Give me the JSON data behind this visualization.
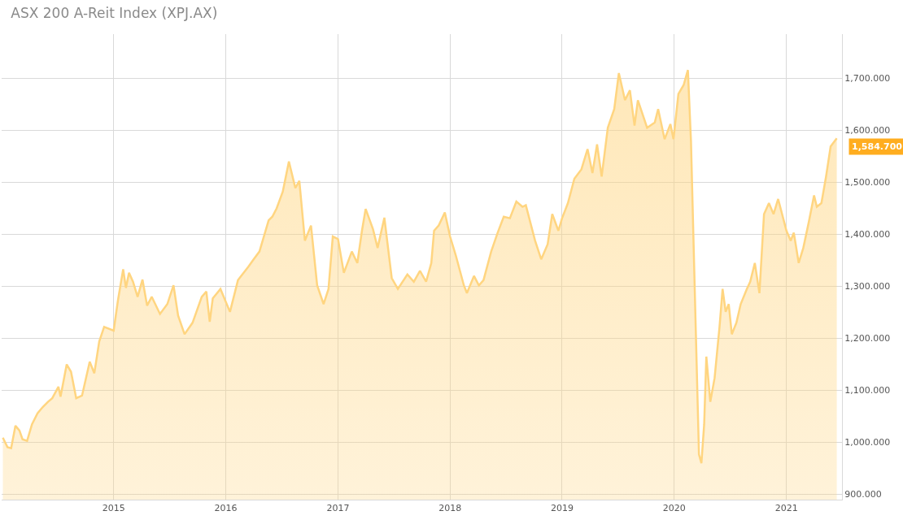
{
  "chart_data": {
    "type": "area",
    "title": "ASX 200 A-Reit Index (XPJ.AX)",
    "x": [
      "2014-01-05",
      "2014-01-20",
      "2014-02-01",
      "2014-02-15",
      "2014-02-28",
      "2014-03-10",
      "2014-03-25",
      "2014-04-10",
      "2014-04-28",
      "2014-05-15",
      "2014-06-01",
      "2014-06-15",
      "2014-07-05",
      "2014-07-12",
      "2014-08-01",
      "2014-08-15",
      "2014-09-01",
      "2014-09-20",
      "2014-10-15",
      "2014-10-30",
      "2014-11-15",
      "2014-12-01",
      "2015-01-01",
      "2015-01-15",
      "2015-02-01",
      "2015-02-10",
      "2015-02-20",
      "2015-03-05",
      "2015-03-20",
      "2015-04-05",
      "2015-04-20",
      "2015-05-05",
      "2015-06-01",
      "2015-06-25",
      "2015-07-15",
      "2015-07-30",
      "2015-08-20",
      "2015-09-15",
      "2015-10-15",
      "2015-10-30",
      "2015-11-10",
      "2015-11-20",
      "2015-12-15",
      "2016-01-15",
      "2016-02-10",
      "2016-03-15",
      "2016-04-01",
      "2016-04-20",
      "2016-05-20",
      "2016-06-01",
      "2016-06-15",
      "2016-07-05",
      "2016-07-25",
      "2016-08-15",
      "2016-08-28",
      "2016-09-15",
      "2016-10-05",
      "2016-10-25",
      "2016-11-15",
      "2016-12-01",
      "2016-12-15",
      "2017-01-01",
      "2017-01-20",
      "2017-02-15",
      "2017-03-05",
      "2017-03-20",
      "2017-04-01",
      "2017-04-25",
      "2017-05-10",
      "2017-06-01",
      "2017-06-25",
      "2017-07-15",
      "2017-08-15",
      "2017-09-05",
      "2017-09-25",
      "2017-10-15",
      "2017-11-01",
      "2017-11-10",
      "2017-11-25",
      "2017-12-15",
      "2018-01-01",
      "2018-01-20",
      "2018-02-15",
      "2018-02-25",
      "2018-03-20",
      "2018-04-05",
      "2018-04-20",
      "2018-05-15",
      "2018-06-05",
      "2018-06-25",
      "2018-07-15",
      "2018-08-05",
      "2018-08-25",
      "2018-09-05",
      "2018-10-05",
      "2018-10-25",
      "2018-11-15",
      "2018-11-30",
      "2018-12-20",
      "2019-01-01",
      "2019-01-20",
      "2019-02-10",
      "2019-03-05",
      "2019-03-25",
      "2019-04-10",
      "2019-04-25",
      "2019-05-10",
      "2019-05-30",
      "2019-06-20",
      "2019-07-05",
      "2019-07-25",
      "2019-08-10",
      "2019-08-25",
      "2019-09-05",
      "2019-10-05",
      "2019-10-30",
      "2019-11-10",
      "2019-12-01",
      "2019-12-20",
      "2019-12-30",
      "2020-01-15",
      "2020-02-01",
      "2020-02-15",
      "2020-02-25",
      "2020-03-12",
      "2020-03-22",
      "2020-03-30",
      "2020-04-08",
      "2020-04-15",
      "2020-04-28",
      "2020-05-12",
      "2020-05-28",
      "2020-06-07",
      "2020-06-17",
      "2020-06-27",
      "2020-07-07",
      "2020-07-22",
      "2020-08-05",
      "2020-08-25",
      "2020-09-05",
      "2020-09-20",
      "2020-10-05",
      "2020-10-20",
      "2020-11-05",
      "2020-11-20",
      "2020-12-05",
      "2021-01-01",
      "2021-01-15",
      "2021-01-25",
      "2021-02-10",
      "2021-02-25",
      "2021-03-15",
      "2021-04-01",
      "2021-04-10",
      "2021-04-25",
      "2021-05-10",
      "2021-05-25",
      "2021-06-14"
    ],
    "values": [
      1009,
      991,
      989,
      1032,
      1023,
      1006,
      1003,
      1035,
      1056,
      1068,
      1078,
      1085,
      1107,
      1088,
      1150,
      1136,
      1085,
      1090,
      1155,
      1133,
      1194,
      1222,
      1215,
      1273,
      1333,
      1297,
      1326,
      1309,
      1280,
      1313,
      1263,
      1280,
      1247,
      1266,
      1302,
      1244,
      1208,
      1230,
      1280,
      1290,
      1232,
      1277,
      1295,
      1251,
      1312,
      1338,
      1352,
      1367,
      1427,
      1434,
      1450,
      1482,
      1540,
      1489,
      1503,
      1388,
      1417,
      1302,
      1266,
      1295,
      1396,
      1391,
      1326,
      1367,
      1345,
      1407,
      1449,
      1410,
      1374,
      1432,
      1316,
      1295,
      1323,
      1309,
      1330,
      1309,
      1345,
      1407,
      1417,
      1442,
      1396,
      1359,
      1302,
      1287,
      1320,
      1302,
      1312,
      1367,
      1403,
      1434,
      1431,
      1463,
      1453,
      1456,
      1388,
      1352,
      1381,
      1439,
      1407,
      1431,
      1460,
      1507,
      1525,
      1564,
      1518,
      1573,
      1511,
      1605,
      1641,
      1710,
      1658,
      1677,
      1609,
      1658,
      1605,
      1615,
      1641,
      1583,
      1612,
      1583,
      1670,
      1687,
      1716,
      1579,
      1208,
      977,
      960,
      1035,
      1165,
      1078,
      1124,
      1222,
      1295,
      1251,
      1266,
      1208,
      1230,
      1266,
      1295,
      1309,
      1345,
      1287,
      1439,
      1460,
      1439,
      1468,
      1407,
      1388,
      1403,
      1345,
      1374,
      1424,
      1475,
      1453,
      1460,
      1511,
      1569,
      1584.7
    ],
    "color": "#ffd580",
    "xlim": [
      "2014-01-01",
      "2021-07-01"
    ],
    "xticks": [
      {
        "value": "2015-01-01",
        "label": "2015"
      },
      {
        "value": "2016-01-01",
        "label": "2016"
      },
      {
        "value": "2017-01-01",
        "label": "2017"
      },
      {
        "value": "2018-01-01",
        "label": "2018"
      },
      {
        "value": "2019-01-01",
        "label": "2019"
      },
      {
        "value": "2020-01-01",
        "label": "2020"
      },
      {
        "value": "2021-01-01",
        "label": "2021"
      }
    ],
    "ylim": [
      890,
      1785
    ],
    "yticks": [
      {
        "value": 900,
        "label": "900.000"
      },
      {
        "value": 1000,
        "label": "1,000.000"
      },
      {
        "value": 1100,
        "label": "1,100.000"
      },
      {
        "value": 1200,
        "label": "1,200.000"
      },
      {
        "value": 1300,
        "label": "1,300.000"
      },
      {
        "value": 1400,
        "label": "1,400.000"
      },
      {
        "value": 1500,
        "label": "1,500.000"
      },
      {
        "value": 1600,
        "label": "1,600.000"
      },
      {
        "value": 1700,
        "label": "1,700.000"
      }
    ],
    "annotations": [
      {
        "text": "1,584.700",
        "x": "2021-06-14",
        "y": 1584.7
      }
    ],
    "grid": true,
    "legend": false
  }
}
